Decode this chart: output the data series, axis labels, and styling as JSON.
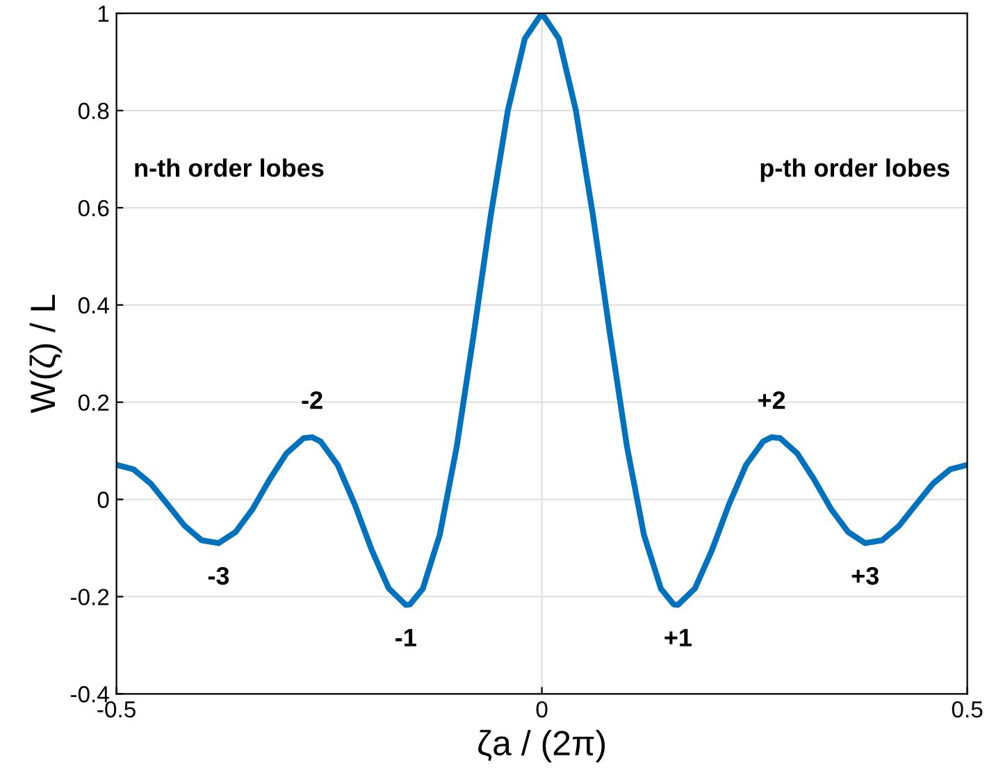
{
  "chart_data": {
    "type": "line",
    "xlabel": "ζa / (2π)",
    "ylabel": "W(ζ) / L",
    "x": [
      -0.5,
      -0.48,
      -0.46,
      -0.44,
      -0.42,
      -0.4,
      -0.38,
      -0.36,
      -0.34,
      -0.32,
      -0.3,
      -0.28,
      -0.27,
      -0.26,
      -0.24,
      -0.22,
      -0.2,
      -0.18,
      -0.16,
      -0.155,
      -0.14,
      -0.12,
      -0.1,
      -0.08,
      -0.06,
      -0.04,
      -0.02,
      0,
      0.02,
      0.04,
      0.06,
      0.08,
      0.1,
      0.12,
      0.14,
      0.155,
      0.16,
      0.18,
      0.2,
      0.22,
      0.24,
      0.26,
      0.27,
      0.28,
      0.3,
      0.32,
      0.34,
      0.36,
      0.38,
      0.4,
      0.42,
      0.44,
      0.46,
      0.48,
      0.5
    ],
    "series": [
      {
        "color": "#0072bd",
        "values": [
          0.071,
          0.062,
          0.033,
          -0.01,
          -0.054,
          -0.084,
          -0.09,
          -0.067,
          -0.02,
          0.041,
          0.095,
          0.126,
          0.128,
          0.119,
          0.071,
          -0.01,
          -0.104,
          -0.183,
          -0.217,
          -0.216,
          -0.184,
          -0.073,
          0.109,
          0.341,
          0.585,
          0.8,
          0.948,
          1,
          0.948,
          0.8,
          0.585,
          0.341,
          0.109,
          -0.073,
          -0.184,
          -0.216,
          -0.217,
          -0.183,
          -0.104,
          -0.01,
          0.071,
          0.119,
          0.128,
          0.126,
          0.095,
          0.041,
          -0.02,
          -0.067,
          -0.09,
          -0.084,
          -0.054,
          -0.01,
          0.033,
          0.062,
          0.071
        ]
      }
    ],
    "xlim": [
      -0.5,
      0.5
    ],
    "ylim": [
      -0.4,
      1
    ],
    "xticks": [
      -0.5,
      0,
      0.5
    ],
    "yticks": [
      -0.4,
      -0.2,
      0,
      0.2,
      0.4,
      0.6,
      0.8,
      1
    ],
    "grid": true,
    "line_style": "solid",
    "marker": "none",
    "annotations": [
      "n-th order lobes",
      "p-th order lobes",
      {
        "text": "-2",
        "x": -0.27,
        "y": 0.128
      },
      {
        "text": "-3",
        "x": -0.38,
        "y": -0.09
      },
      {
        "text": "-1",
        "x": -0.16,
        "y": -0.217
      },
      {
        "text": "+1",
        "x": 0.16,
        "y": -0.217
      },
      {
        "text": "+2",
        "x": 0.27,
        "y": 0.128
      },
      {
        "text": "+3",
        "x": 0.38,
        "y": -0.09
      }
    ]
  }
}
